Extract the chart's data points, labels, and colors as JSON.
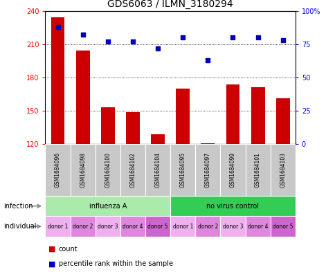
{
  "title": "GDS6063 / ILMN_3180294",
  "samples": [
    "GSM1684096",
    "GSM1684098",
    "GSM1684100",
    "GSM1684102",
    "GSM1684104",
    "GSM1684095",
    "GSM1684097",
    "GSM1684099",
    "GSM1684101",
    "GSM1684103"
  ],
  "counts": [
    234,
    204,
    153,
    149,
    129,
    170,
    121,
    174,
    171,
    161
  ],
  "percentile_ranks": [
    88,
    82,
    77,
    77,
    72,
    80,
    63,
    80,
    80,
    78
  ],
  "ymin": 120,
  "ymax": 240,
  "yticks": [
    120,
    150,
    180,
    210,
    240
  ],
  "right_yticks": [
    0,
    25,
    50,
    75,
    100
  ],
  "infection_groups": [
    {
      "label": "influenza A",
      "start": 0,
      "end": 5,
      "color": "#AAEAAA"
    },
    {
      "label": "no virus control",
      "start": 5,
      "end": 10,
      "color": "#33CC55"
    }
  ],
  "individual_labels": [
    "donor 1",
    "donor 2",
    "donor 3",
    "donor 4",
    "donor 5",
    "donor 1",
    "donor 2",
    "donor 3",
    "donor 4",
    "donor 5"
  ],
  "individual_colors": [
    "#EEB0EE",
    "#DD88DD",
    "#EEB0EE",
    "#DD88DD",
    "#CC66CC",
    "#EEB0EE",
    "#DD88DD",
    "#EEB0EE",
    "#DD88DD",
    "#CC66CC"
  ],
  "bar_color": "#CC0000",
  "dot_color": "#0000BB",
  "bar_width": 0.55,
  "sample_bg_color": "#C8C8C8",
  "title_fontsize": 10,
  "tick_fontsize": 7,
  "sample_fontsize": 5.5,
  "row_fontsize": 7,
  "legend_fontsize": 7
}
